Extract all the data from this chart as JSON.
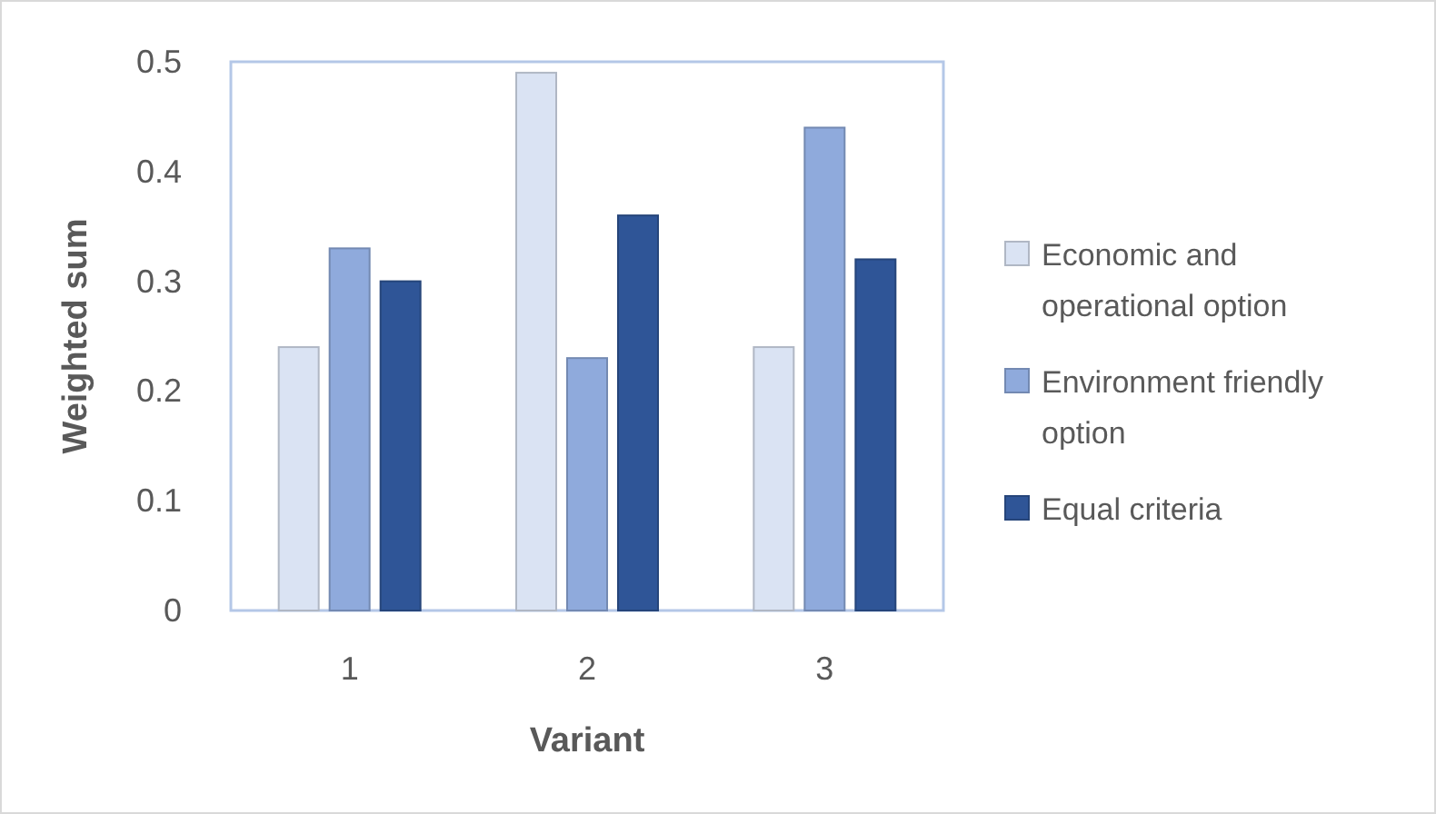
{
  "chart_data": {
    "type": "bar",
    "xlabel": "Variant",
    "ylabel": "Weighted sum",
    "categories": [
      "1",
      "2",
      "3"
    ],
    "series": [
      {
        "name": "Economic and operational option",
        "color": "#dae3f3",
        "values": [
          0.24,
          0.49,
          0.24
        ]
      },
      {
        "name": "Environment friendly option",
        "color": "#8faadc",
        "values": [
          0.33,
          0.23,
          0.44
        ]
      },
      {
        "name": "Equal criteria",
        "color": "#2f5597",
        "values": [
          0.3,
          0.36,
          0.32
        ]
      }
    ],
    "ylim": [
      0,
      0.5
    ],
    "yticks": [
      {
        "value": 0,
        "label": "0"
      },
      0.1,
      0.2,
      0.3,
      0.4,
      0.5
    ],
    "legend": "right"
  }
}
